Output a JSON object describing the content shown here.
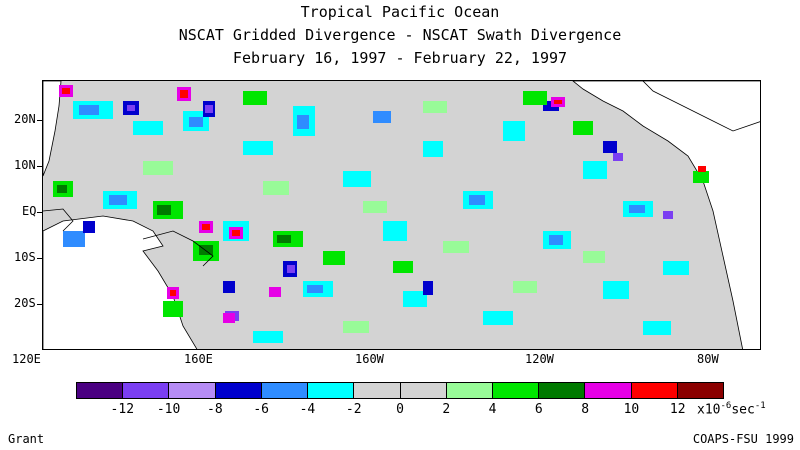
{
  "title": {
    "line1": "Tropical Pacific Ocean",
    "line2": "NSCAT Gridded Divergence - NSCAT Swath Divergence",
    "line3": "February 16, 1997 - February 22, 1997"
  },
  "axes": {
    "x_ticks": [
      "120E",
      "160E",
      "160W",
      "120W",
      "80W"
    ],
    "y_ticks": [
      "20N",
      "10N",
      "EQ",
      "10S",
      "20S"
    ]
  },
  "colorbar": {
    "colors": [
      "#4b0082",
      "#7b3ff2",
      "#b68cf5",
      "#0000cd",
      "#2f8cff",
      "#00ffff",
      "#d3d3d3",
      "#d3d3d3",
      "#98fb98",
      "#00e600",
      "#007a00",
      "#e600e6",
      "#ff0000",
      "#8b0000"
    ],
    "labels": [
      "-12",
      "-10",
      "-8",
      "-6",
      "-4",
      "-2",
      "0",
      "2",
      "4",
      "6",
      "8",
      "10",
      "12"
    ],
    "units_base": "x10",
    "units_exp": "-6",
    "units_tail": "sec",
    "units_tail_exp": "-1"
  },
  "footer": {
    "left": "Grant",
    "right": "COAPS-FSU 1999"
  }
}
